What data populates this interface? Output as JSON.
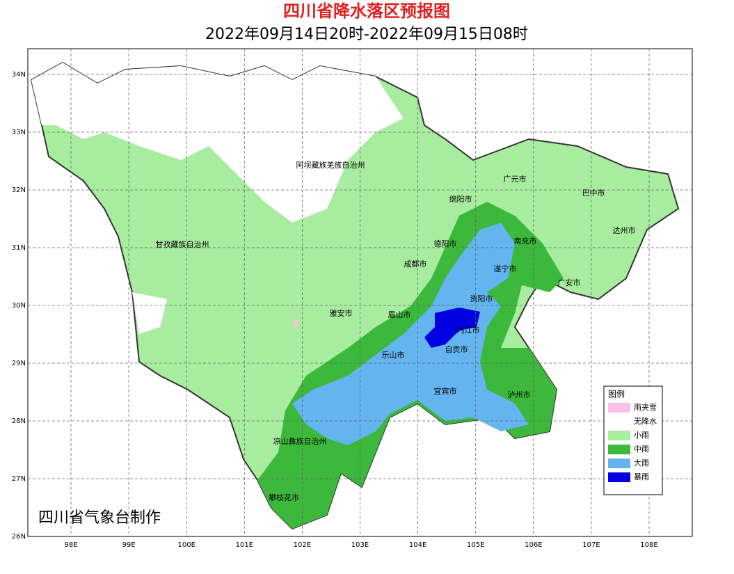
{
  "header": {
    "title": "四川省降水落区预报图",
    "subtitle": "2022年09月14日20时-2022年09月15日08时"
  },
  "map": {
    "lon_ticks": [
      {
        "value": 98,
        "label": "98E"
      },
      {
        "value": 99,
        "label": "99E"
      },
      {
        "value": 100,
        "label": "100E"
      },
      {
        "value": 101,
        "label": "101E"
      },
      {
        "value": 102,
        "label": "102E"
      },
      {
        "value": 103,
        "label": "103E"
      },
      {
        "value": 104,
        "label": "104E"
      },
      {
        "value": 105,
        "label": "105E"
      },
      {
        "value": 106,
        "label": "106E"
      },
      {
        "value": 107,
        "label": "107E"
      },
      {
        "value": 108,
        "label": "108E"
      }
    ],
    "lat_ticks": [
      {
        "value": 26,
        "label": "26N"
      },
      {
        "value": 27,
        "label": "27N"
      },
      {
        "value": 28,
        "label": "28N"
      },
      {
        "value": 29,
        "label": "29N"
      },
      {
        "value": 30,
        "label": "30N"
      },
      {
        "value": 31,
        "label": "31N"
      },
      {
        "value": 32,
        "label": "32N"
      },
      {
        "value": 33,
        "label": "33N"
      },
      {
        "value": 34,
        "label": "34N"
      }
    ],
    "cities": [
      "阿坝藏族羌族自治州",
      "广元市",
      "巴中市",
      "绵阳市",
      "达州市",
      "甘孜藏族自治州",
      "德阳市",
      "南充市",
      "成都市",
      "遂宁市",
      "广安市",
      "资阳市",
      "雅安市",
      "眉山市",
      "内江市",
      "自贡市",
      "乐山市",
      "宜宾市",
      "泸州市",
      "凉山彝族自治州",
      "攀枝花市"
    ]
  },
  "legend": {
    "title": "图例",
    "items": [
      {
        "label": "雨夹雪",
        "color": "#f9c0e8"
      },
      {
        "label": "无降水",
        "color": "#ffffff"
      },
      {
        "label": "小雨",
        "color": "#a8eca0"
      },
      {
        "label": "中雨",
        "color": "#3cb83c"
      },
      {
        "label": "大雨",
        "color": "#64b4f0"
      },
      {
        "label": "暴雨",
        "color": "#0000e0"
      }
    ]
  },
  "footer": "四川省气象台制作"
}
